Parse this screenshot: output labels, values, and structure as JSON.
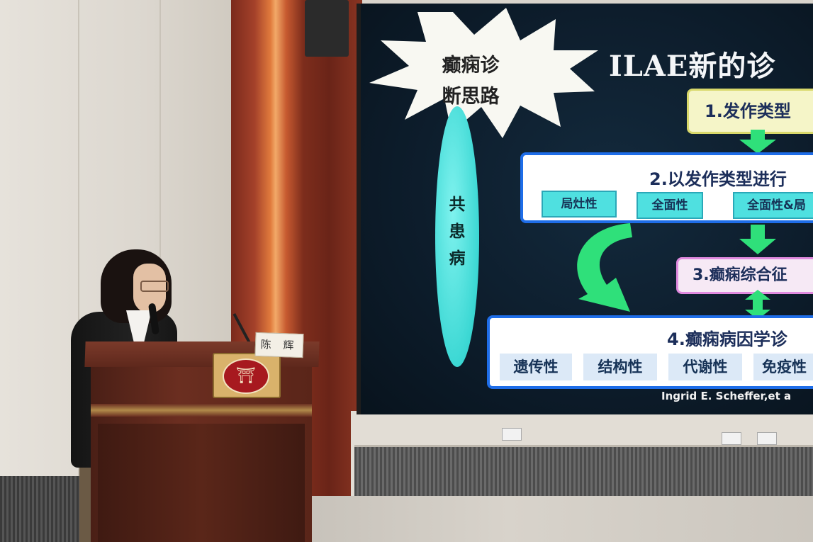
{
  "slide": {
    "thought_bubble": [
      "癫痫诊",
      "断思路"
    ],
    "title": "ILAE新的诊",
    "comorbidity": [
      "共",
      "患",
      "病"
    ],
    "step1": "1.发作类型",
    "step2": {
      "title": "2.以发作类型进行",
      "tags": [
        "局灶性",
        "全面性",
        "全面性&局"
      ]
    },
    "step3": "3.癫痫综合征",
    "step4": {
      "title": "4.癫痫病因学诊",
      "tags": [
        "遗传性",
        "结构性",
        "代谢性",
        "免疫性"
      ]
    },
    "citation": "Ingrid E. Scheffer,et a"
  },
  "podium": {
    "name_card": "陈 辉"
  },
  "colors": {
    "screen_bg": "#0d1d2c",
    "box_border": "#1e6de8",
    "tag_cyan": "#4fe0e0",
    "arrow_green": "#2fe07a",
    "curtain": "#a4412a",
    "podium": "#5e281c"
  }
}
